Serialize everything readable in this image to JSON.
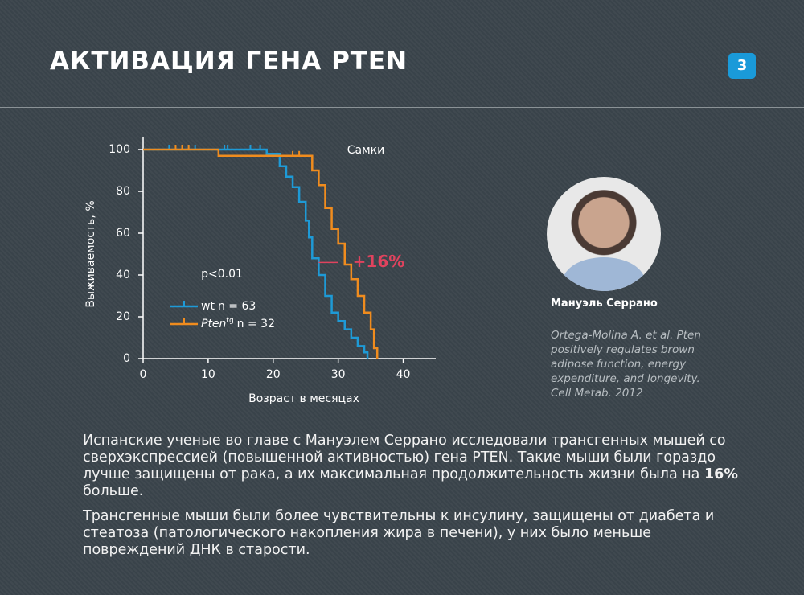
{
  "header": {
    "title": "АКТИВАЦИЯ ГЕНА PTEN",
    "page_number": "3"
  },
  "chart_data": {
    "type": "step",
    "xlabel": "Возраст в месяцах",
    "ylabel": "Выживаемость, %",
    "subtitle": "Самки",
    "pvalue": "p<0.01",
    "xlim": [
      0,
      45
    ],
    "ylim": [
      0,
      100
    ],
    "xticks": [
      0,
      10,
      20,
      30,
      40
    ],
    "yticks": [
      0,
      20,
      40,
      60,
      80,
      100
    ],
    "series": [
      {
        "name": "wt",
        "n_label": "n = 63",
        "color": "#1e9ad6",
        "x": [
          0,
          12,
          19,
          21,
          22,
          23,
          24,
          25,
          25.5,
          26,
          27,
          28,
          29,
          30,
          31,
          32,
          33,
          34,
          34.5
        ],
        "values": [
          100,
          100,
          98,
          92,
          87,
          82,
          75,
          66,
          58,
          48,
          40,
          30,
          22,
          18,
          14,
          10,
          6,
          3,
          0
        ],
        "censored_x": [
          4,
          6,
          7,
          8,
          12.5,
          13,
          16.5,
          18
        ]
      },
      {
        "name": "Pten",
        "name_superscript": "tg",
        "n_label": "n = 32",
        "color": "#f08c1e",
        "x": [
          0,
          11.6,
          21,
          26,
          27,
          28,
          29,
          30,
          31,
          32,
          33,
          34,
          35,
          35.5,
          36
        ],
        "values": [
          100,
          97,
          97,
          90,
          83,
          72,
          62,
          55,
          45,
          38,
          30,
          22,
          14,
          5,
          0
        ],
        "censored_x": [
          5,
          6,
          7,
          23,
          24
        ]
      }
    ],
    "annotation": {
      "text": "+16%",
      "color": "#e0435e",
      "y": 46,
      "x_from": 27,
      "x_to": 30
    }
  },
  "person": {
    "name": "Мануэль Серрано",
    "citation": "Ortega-Molina A. et al. Pten positively regulates brown adipose function, energy expenditure, and longevity. Cell Metab. 2012"
  },
  "body": {
    "paragraph1": {
      "before": "Испанские ученые во главе с Мануэлем Серрано исследовали трансгенных мышей со сверхэкспрессией (повышенной активностью) гена PTEN. Такие мыши были гораздо лучше защищены от рака, а их максимальная продолжительность жизни была на ",
      "bold": "16%",
      "after": " больше."
    },
    "paragraph2": "Трансгенные мыши были более чувствительны к инсулину, защищены от диабета и стеатоза (патологического накопления жира в печени), у них было меньше повреждений ДНК в старости."
  }
}
